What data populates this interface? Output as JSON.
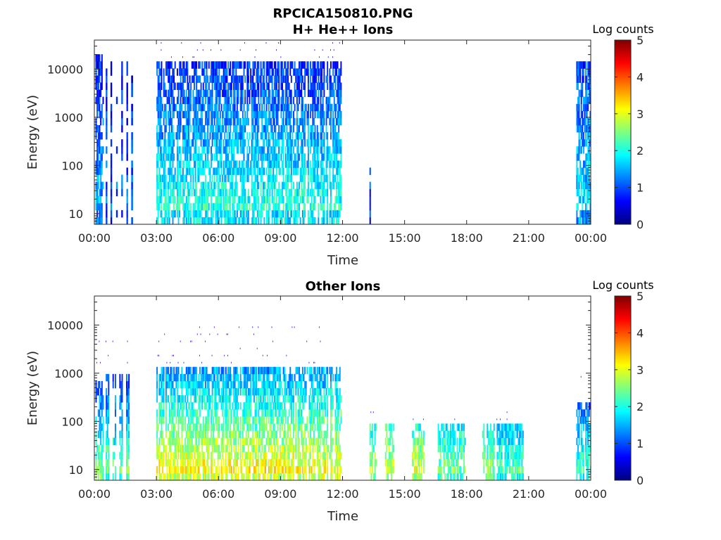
{
  "figure": {
    "title": "RPCICA150810.PNG"
  },
  "chart_data": [
    {
      "type": "heatmap",
      "title": "H+ He++ Ions",
      "xlabel": "Time",
      "ylabel": "Energy (eV)",
      "x_range_hours": [
        0,
        24
      ],
      "x_ticks": [
        "00:00",
        "03:00",
        "06:00",
        "09:00",
        "12:00",
        "15:00",
        "18:00",
        "21:00",
        "00:00"
      ],
      "y_scale": "log",
      "y_range": [
        6,
        40000
      ],
      "y_ticks": [
        "10",
        "100",
        "1000",
        "10000"
      ],
      "colorbar": {
        "label": "Log counts",
        "min": 0,
        "max": 5,
        "ticks": [
          "0",
          "1",
          "2",
          "3",
          "4",
          "5"
        ],
        "colormap": "jet"
      },
      "bursts": [
        {
          "start_h": 0.05,
          "end_h": 0.45,
          "emax": 20000,
          "level_low": 1.6,
          "level_high": 0.6
        },
        {
          "start_h": 0.55,
          "end_h": 0.62,
          "emax": 15000,
          "level_low": 1.2,
          "level_high": 0.6
        },
        {
          "start_h": 0.78,
          "end_h": 0.85,
          "emax": 15000,
          "level_low": 1.2,
          "level_high": 0.6
        },
        {
          "start_h": 1.05,
          "end_h": 1.12,
          "emax": 15000,
          "level_low": 1.2,
          "level_high": 0.6
        },
        {
          "start_h": 1.3,
          "end_h": 1.37,
          "emax": 15000,
          "level_low": 1.2,
          "level_high": 0.6
        },
        {
          "start_h": 1.55,
          "end_h": 1.62,
          "emax": 15000,
          "level_low": 1.2,
          "level_high": 0.6
        },
        {
          "start_h": 1.78,
          "end_h": 1.86,
          "emax": 12000,
          "level_low": 1.2,
          "level_high": 0.6
        },
        {
          "start_h": 3.0,
          "end_h": 11.95,
          "emax": 15000,
          "level_low": 2.2,
          "level_high": 0.8
        },
        {
          "start_h": 13.3,
          "end_h": 13.36,
          "emax": 80,
          "level_low": 1.0,
          "level_high": 0.8
        },
        {
          "start_h": 23.3,
          "end_h": 24.0,
          "emax": 15000,
          "level_low": 1.8,
          "level_high": 0.9
        }
      ]
    },
    {
      "type": "heatmap",
      "title": "Other Ions",
      "xlabel": "Time",
      "ylabel": "Energy (eV)",
      "x_range_hours": [
        0,
        24
      ],
      "x_ticks": [
        "00:00",
        "03:00",
        "06:00",
        "09:00",
        "12:00",
        "15:00",
        "18:00",
        "21:00",
        "00:00"
      ],
      "y_scale": "log",
      "y_range": [
        6,
        40000
      ],
      "y_ticks": [
        "10",
        "100",
        "1000",
        "10000"
      ],
      "colorbar": {
        "label": "Log counts",
        "min": 0,
        "max": 5,
        "ticks": [
          "0",
          "1",
          "2",
          "3",
          "4",
          "5"
        ],
        "colormap": "jet"
      },
      "bursts": [
        {
          "start_h": 0.05,
          "end_h": 0.45,
          "emax": 800,
          "level_low": 2.8,
          "level_high": 0.8
        },
        {
          "start_h": 0.55,
          "end_h": 1.86,
          "emax": 900,
          "level_low": 2.6,
          "level_high": 0.8,
          "striped": true
        },
        {
          "start_h": 3.0,
          "end_h": 11.95,
          "emax": 1500,
          "level_low": 3.3,
          "level_high": 1.3
        },
        {
          "start_h": 13.3,
          "end_h": 13.65,
          "emax": 80,
          "level_low": 2.8,
          "level_high": 2.0
        },
        {
          "start_h": 14.05,
          "end_h": 14.5,
          "emax": 80,
          "level_low": 3.0,
          "level_high": 2.2
        },
        {
          "start_h": 15.35,
          "end_h": 15.95,
          "emax": 80,
          "level_low": 3.2,
          "level_high": 2.0
        },
        {
          "start_h": 16.6,
          "end_h": 17.95,
          "emax": 80,
          "level_low": 2.6,
          "level_high": 1.8
        },
        {
          "start_h": 18.75,
          "end_h": 19.35,
          "emax": 80,
          "level_low": 2.8,
          "level_high": 1.8
        },
        {
          "start_h": 19.45,
          "end_h": 20.75,
          "emax": 80,
          "level_low": 2.4,
          "level_high": 1.6
        },
        {
          "start_h": 23.3,
          "end_h": 24.0,
          "emax": 250,
          "level_low": 2.4,
          "level_high": 1.0
        }
      ]
    }
  ]
}
